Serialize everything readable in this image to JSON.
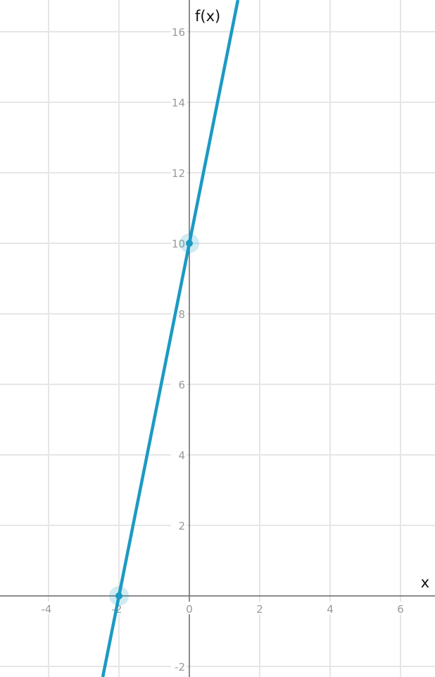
{
  "chart_data": {
    "type": "line",
    "title": "",
    "xlabel": "x",
    "ylabel": "f(x)",
    "xlim": [
      -5.38,
      6.98
    ],
    "ylim": [
      -2.3,
      16.9
    ],
    "grid": true,
    "grid_step": 2,
    "x_ticks": [
      "-4",
      "-2",
      "0",
      "2",
      "4",
      "6"
    ],
    "y_ticks": [
      "-2",
      "2",
      "4",
      "6",
      "8",
      "10",
      "12",
      "14",
      "16"
    ],
    "series": [
      {
        "function": "f(x) = 5x + 10",
        "slope": 5,
        "intercept": 10,
        "color": "#1b9ac4"
      }
    ],
    "points": [
      {
        "x": -2,
        "y": 0
      },
      {
        "x": 0,
        "y": 10
      }
    ]
  }
}
